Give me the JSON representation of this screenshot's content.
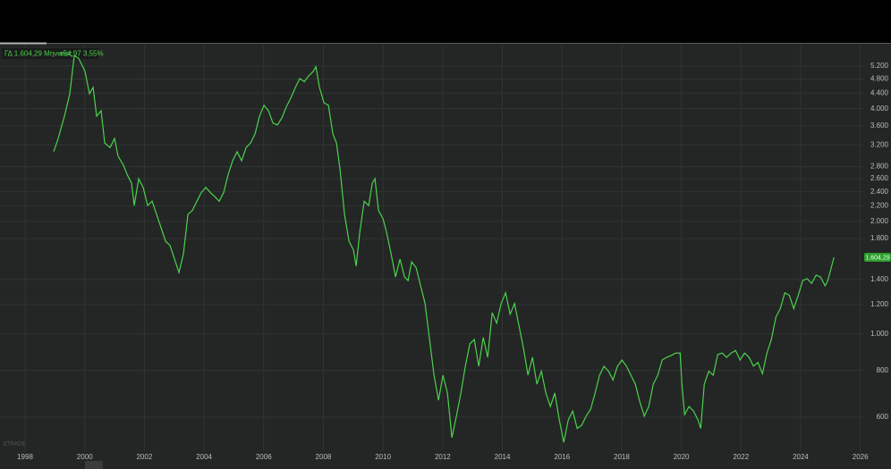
{
  "chart_data": {
    "type": "line",
    "title": "ΓΔ 1.604,29 Μηνιαίος",
    "change": "+54,97 3,55%",
    "price_tag": "1.604,29",
    "watermark": "ETRADE",
    "log": true,
    "grid": true,
    "xlim": [
      1997.16,
      2026.1
    ],
    "xticks": [
      1998,
      2000,
      2002,
      2004,
      2006,
      2008,
      2010,
      2012,
      2014,
      2016,
      2018,
      2020,
      2022,
      2024,
      2026
    ],
    "ylim": [
      487,
      5930
    ],
    "yticks": [
      600,
      800,
      {
        "value": 1000,
        "label": "1.000"
      },
      {
        "value": 1200,
        "label": "1.200"
      },
      {
        "value": 1400,
        "label": "1.400"
      },
      {
        "value": 1800,
        "label": "1.800"
      },
      {
        "value": 2000,
        "label": "2.000"
      },
      {
        "value": 2200,
        "label": "2.200"
      },
      {
        "value": 2400,
        "label": "2.400"
      },
      {
        "value": 2600,
        "label": "2.600"
      },
      {
        "value": 2800,
        "label": "2.800"
      },
      {
        "value": 3200,
        "label": "3.200"
      },
      {
        "value": 3600,
        "label": "3.600"
      },
      {
        "value": 4000,
        "label": "4.000"
      },
      {
        "value": 4400,
        "label": "4.400"
      },
      {
        "value": 4800,
        "label": "4.800"
      },
      {
        "value": 5200,
        "label": "5.200"
      }
    ],
    "series": [
      {
        "name": "ΓΔ",
        "color": "#4cd14c",
        "x": [
          1998.96,
          1999.11,
          1999.32,
          1999.5,
          1999.65,
          1999.8,
          2000.01,
          2000.16,
          2000.28,
          2000.4,
          2000.55,
          2000.67,
          2000.85,
          2001.0,
          2001.12,
          2001.3,
          2001.42,
          2001.57,
          2001.66,
          2001.81,
          2001.96,
          2002.11,
          2002.26,
          2002.41,
          2002.56,
          2002.71,
          2002.86,
          2003.01,
          2003.16,
          2003.31,
          2003.46,
          2003.61,
          2003.76,
          2003.91,
          2004.06,
          2004.21,
          2004.36,
          2004.51,
          2004.66,
          2004.81,
          2004.96,
          2005.11,
          2005.26,
          2005.41,
          2005.56,
          2005.71,
          2005.86,
          2006.01,
          2006.16,
          2006.31,
          2006.46,
          2006.61,
          2006.76,
          2006.91,
          2007.06,
          2007.21,
          2007.36,
          2007.51,
          2007.66,
          2007.75,
          2007.87,
          2008.02,
          2008.17,
          2008.32,
          2008.44,
          2008.56,
          2008.71,
          2008.86,
          2009.01,
          2009.1,
          2009.22,
          2009.37,
          2009.52,
          2009.64,
          2009.73,
          2009.85,
          2010.0,
          2010.12,
          2010.27,
          2010.42,
          2010.57,
          2010.72,
          2010.84,
          2010.96,
          2011.11,
          2011.26,
          2011.41,
          2011.56,
          2011.71,
          2011.86,
          2012.01,
          2012.16,
          2012.31,
          2012.46,
          2012.61,
          2012.76,
          2012.91,
          2013.06,
          2013.21,
          2013.36,
          2013.51,
          2013.66,
          2013.81,
          2013.96,
          2014.11,
          2014.26,
          2014.41,
          2014.56,
          2014.71,
          2014.86,
          2015.01,
          2015.16,
          2015.31,
          2015.46,
          2015.61,
          2015.76,
          2015.91,
          2016.06,
          2016.21,
          2016.36,
          2016.51,
          2016.66,
          2016.81,
          2016.96,
          2017.11,
          2017.26,
          2017.41,
          2017.56,
          2017.71,
          2017.86,
          2018.01,
          2018.16,
          2018.31,
          2018.46,
          2018.61,
          2018.76,
          2018.91,
          2019.06,
          2019.21,
          2019.36,
          2019.51,
          2019.66,
          2019.81,
          2019.96,
          2020.02,
          2020.11,
          2020.26,
          2020.41,
          2020.56,
          2020.65,
          2020.77,
          2020.92,
          2021.07,
          2021.22,
          2021.37,
          2021.52,
          2021.67,
          2021.82,
          2021.97,
          2022.12,
          2022.27,
          2022.42,
          2022.57,
          2022.72,
          2022.87,
          2023.02,
          2023.17,
          2023.32,
          2023.47,
          2023.62,
          2023.77,
          2023.92,
          2024.07,
          2024.22,
          2024.37,
          2024.52,
          2024.67,
          2024.82,
          2024.91,
          2025.0,
          2025.12
        ],
        "values": [
          3070,
          3330,
          3820,
          4385,
          5550,
          5450,
          5030,
          4385,
          4560,
          3820,
          3950,
          3240,
          3150,
          3330,
          2985,
          2825,
          2670,
          2530,
          2205,
          2600,
          2465,
          2205,
          2265,
          2088,
          1923,
          1771,
          1725,
          1587,
          1461,
          1640,
          2088,
          2140,
          2265,
          2390,
          2465,
          2390,
          2330,
          2265,
          2390,
          2670,
          2905,
          3070,
          2905,
          3150,
          3240,
          3425,
          3820,
          4085,
          3950,
          3660,
          3620,
          3780,
          4050,
          4270,
          4555,
          4815,
          4720,
          4895,
          5030,
          5180,
          4560,
          4150,
          4085,
          3425,
          3240,
          2750,
          2088,
          1771,
          1677,
          1520,
          1870,
          2265,
          2205,
          2530,
          2600,
          2140,
          2032,
          1870,
          1640,
          1422,
          1587,
          1422,
          1390,
          1560,
          1505,
          1346,
          1207,
          968,
          777,
          666,
          777,
          696,
          529,
          604,
          696,
          821,
          941,
          968,
          821,
          980,
          867,
          1141,
          1070,
          1207,
          1289,
          1130,
          1207,
          1051,
          916,
          777,
          867,
          735,
          796,
          696,
          641,
          696,
          590,
          514,
          590,
          623,
          560,
          571,
          604,
          630,
          696,
          777,
          821,
          796,
          754,
          821,
          853,
          821,
          777,
          735,
          659,
          604,
          641,
          735,
          777,
          853,
          867,
          877,
          890,
          890,
          735,
          610,
          641,
          623,
          590,
          560,
          735,
          796,
          777,
          882,
          890,
          867,
          890,
          904,
          853,
          890,
          867,
          821,
          840,
          784,
          890,
          968,
          1110,
          1170,
          1289,
          1270,
          1170,
          1270,
          1390,
          1406,
          1366,
          1438,
          1420,
          1346,
          1390,
          1477,
          1604.29
        ]
      }
    ]
  }
}
